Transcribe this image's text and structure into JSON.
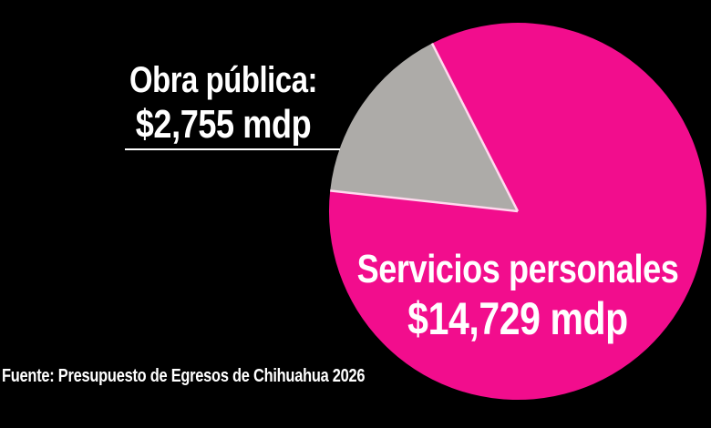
{
  "chart_data": {
    "type": "pie",
    "title": "",
    "slices": [
      {
        "label": "Servicios personales",
        "value": 14729,
        "value_display": "$14,729 mdp",
        "color": "#F20D8D"
      },
      {
        "label": "Obra pública",
        "label_display": "Obra pública:",
        "value": 2755,
        "value_display": "$2,755 mdp",
        "color": "#ADABA8"
      }
    ],
    "unit": "mdp",
    "source": "Fuente: Presupuesto de Egresos de Chihuahua 2026",
    "background": "#000000",
    "text_color": "#FFFFFF",
    "divider_color": "#FFD9EE",
    "callout_color": "#FFFFFF",
    "legend_position": "labels on and beside slices"
  }
}
